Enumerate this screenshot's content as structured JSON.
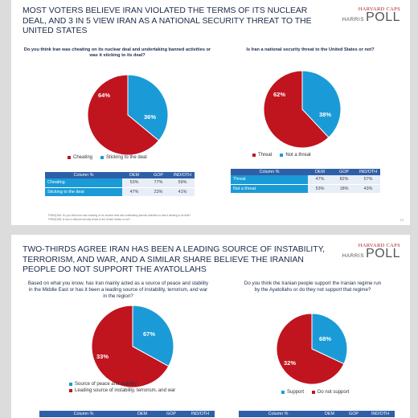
{
  "brand": {
    "top": "HARVARD CAPS",
    "bottom": "HARRIS",
    "poll": "POLL"
  },
  "colors": {
    "red": "#c0141f",
    "blue": "#1a9bd7",
    "header": "#2f5fa7"
  },
  "slide1": {
    "title": "MOST VOTERS BELIEVE IRAN VIOLATED THE TERMS OF ITS NUCLEAR DEAL, AND 3 IN 5 VIEW IRAN AS A NATIONAL SECURITY THREAT TO THE UNITED STATES",
    "footnote_1": "FIRMQ18A: Do you think Iran was cheating on its nuclear deal and undertaking banned activities or was it sticking to its deal?",
    "footnote_2": "FIRMQ18B: Is Iran a national security threat to the United States or not?",
    "page": "10"
  },
  "slide2": {
    "title": "TWO-THIRDS AGREE IRAN HAS BEEN A LEADING SOURCE OF INSTABILITY, TERRORISM, AND WAR, AND A SIMILAR SHARE BELIEVE THE IRANIAN PEOPLE DO NOT SUPPORT THE AYATOLLAHS"
  },
  "chart_data": [
    {
      "type": "pie",
      "question": "Do you think Iran was cheating on its nuclear deal and undertaking banned activities or was it sticking to its deal?",
      "slices": [
        {
          "label": "Cheating",
          "value": 64,
          "display": "64%",
          "color": "#c0141f"
        },
        {
          "label": "Sticking to the deal",
          "value": 36,
          "display": "36%",
          "color": "#1a9bd7"
        }
      ],
      "table": {
        "headers": [
          "Column %",
          "DEM",
          "GOP",
          "IND/OTH"
        ],
        "rows": [
          {
            "label": "Cheating",
            "values": [
              "53%",
              "77%",
              "59%"
            ]
          },
          {
            "label": "Sticking to the deal",
            "values": [
              "47%",
              "23%",
              "41%"
            ]
          }
        ]
      }
    },
    {
      "type": "pie",
      "question": "Is Iran a national security threat to the United States or not?",
      "slices": [
        {
          "label": "Threat",
          "value": 62,
          "display": "62%",
          "color": "#c0141f"
        },
        {
          "label": "Not a threat",
          "value": 38,
          "display": "38%",
          "color": "#1a9bd7"
        }
      ],
      "table": {
        "headers": [
          "Column %",
          "DEM",
          "GOP",
          "IND/OTH"
        ],
        "rows": [
          {
            "label": "Threat",
            "values": [
              "47%",
              "82%",
              "57%"
            ]
          },
          {
            "label": "Not a threat",
            "values": [
              "53%",
              "18%",
              "43%"
            ]
          }
        ]
      }
    },
    {
      "type": "pie",
      "question": "Based on what you know, has Iran mainly acted as a source of peace and stability in the Middle East or has it been a leading source of instability, terrorism, and war in the region?",
      "slices": [
        {
          "label": "Leading source of instability, terrorism, and war",
          "value": 67,
          "display": "67%",
          "color": "#c0141f"
        },
        {
          "label": "Source of peace and stability",
          "value": 33,
          "display": "33%",
          "color": "#1a9bd7"
        }
      ],
      "legend": [
        "Source of peace and stability",
        "Leading source of instability, terrorism, and war"
      ],
      "table": {
        "headers": [
          "Column %",
          "DEM",
          "GOP",
          "IND/OTH"
        ],
        "rows": []
      }
    },
    {
      "type": "pie",
      "question": "Do you think the Iranian people support the Iranian regime run by the Ayatollahs or do they not support that regime?",
      "slices": [
        {
          "label": "Do not support",
          "value": 68,
          "display": "68%",
          "color": "#c0141f"
        },
        {
          "label": "Support",
          "value": 32,
          "display": "32%",
          "color": "#1a9bd7"
        }
      ],
      "legend": [
        "Support",
        "Do not support"
      ],
      "table": {
        "headers": [
          "Column %",
          "DEM",
          "GOP",
          "IND/OTH"
        ],
        "rows": []
      }
    }
  ]
}
